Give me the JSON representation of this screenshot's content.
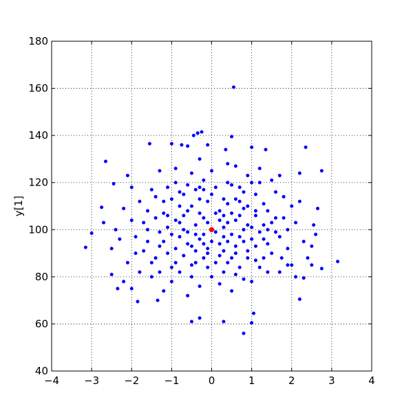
{
  "chart_data": {
    "type": "scatter",
    "ylabel": "y[1]",
    "xlim": [
      -4,
      4
    ],
    "ylim": [
      40,
      180
    ],
    "xticks": [
      {
        "value": -4,
        "label": "−4"
      },
      {
        "value": -3,
        "label": "−3"
      },
      {
        "value": -2,
        "label": "−2"
      },
      {
        "value": -1,
        "label": "−1"
      },
      0,
      1,
      2,
      3,
      4
    ],
    "yticks": [
      40,
      60,
      80,
      100,
      120,
      140,
      160,
      180
    ],
    "grid": true,
    "series": [
      {
        "color": "#0000ff",
        "x": [
          0.55,
          -0.25,
          -0.35,
          -0.45,
          0.5,
          -1.55,
          -1.0,
          -0.75,
          -0.6,
          -2.65,
          2.35,
          2.75,
          -3.15,
          -3.0,
          -2.75,
          -2.7,
          -2.45,
          -2.5,
          -2.35,
          -2.0,
          -1.85,
          -1.35,
          -0.5,
          -0.3,
          0.3,
          0.8,
          1.0,
          1.05,
          3.15,
          2.75,
          2.2,
          2.3,
          2.5,
          2.65,
          2.55,
          2.2,
          1.35,
          1.0,
          0.35,
          -0.1,
          1.75,
          1.9,
          -0.2,
          0.4,
          -0.8,
          0.9,
          1.3,
          -1.2,
          0.1,
          -0.5,
          0.7,
          -1.6,
          1.7,
          0.3,
          -0.9,
          1.1,
          -0.1,
          0.6,
          -1.4,
          1.5,
          -0.6,
          0.2,
          -2.0,
          2.0,
          -1.0,
          0.8,
          0.0,
          -0.3,
          1.2,
          -1.8,
          1.9,
          -0.7,
          0.5,
          -1.1,
          1.0,
          -0.4,
          0.3,
          -1.3,
          1.4,
          -2.3,
          2.3,
          -0.2,
          0.9,
          -0.9,
          0.6,
          -1.5,
          1.6,
          -0.1,
          0.4,
          -0.8,
          1.2,
          -1.7,
          1.8,
          0.0,
          -0.5,
          0.7,
          -1.2,
          1.3,
          -0.3,
          0.2,
          -2.1,
          2.1,
          -0.6,
          0.5,
          -1.0,
          1.1,
          -0.4,
          0.8,
          -1.9,
          1.5,
          0.1,
          -0.7,
          0.9,
          -1.4,
          1.4,
          -0.2,
          0.3,
          -2.5,
          2.6,
          -1.1,
          1.0,
          -0.8,
          0.6,
          -0.1,
          0.4,
          -1.6,
          1.7,
          -0.3,
          0.2,
          -1.3,
          1.3,
          -0.5,
          0.7,
          -2.2,
          2.2,
          -0.9,
          1.1,
          -0.6,
          0.5,
          -1.5,
          1.6,
          0.0,
          -0.4,
          0.8,
          -1.2,
          1.2,
          -0.2,
          0.3,
          -1.8,
          1.9,
          -0.7,
          0.6,
          -1.0,
          1.0,
          -0.3,
          0.4,
          -2.0,
          2.4,
          -1.3,
          1.4,
          -0.1,
          0.9,
          -0.8,
          0.5,
          -1.7,
          1.8,
          -0.5,
          0.2,
          -1.1,
          1.3,
          -0.4,
          0.7,
          -2.4,
          2.5,
          -0.9,
          0.8,
          -0.2,
          0.1,
          -1.4,
          1.5,
          -0.6,
          0.6,
          -1.9,
          2.0,
          0.0,
          -0.3,
          0.3,
          -1.2,
          1.1,
          -0.7,
          0.9,
          -1.6,
          1.6,
          -0.5,
          0.4,
          -2.1,
          1.7,
          -1.0,
          1.0,
          -0.1,
          0.2,
          -0.8,
          0.6,
          -1.3,
          1.2,
          -0.4,
          0.5,
          -2.2,
          2.1,
          -0.9,
          0.8,
          -0.2,
          0.3,
          -1.5,
          1.4,
          -0.6,
          0.7,
          0.1,
          -0.3,
          0.4,
          -1.1,
          1.1
        ],
        "values": [
          160.5,
          141.5,
          141,
          140,
          139.5,
          136.5,
          136.5,
          136,
          135.5,
          129,
          135,
          125,
          92.5,
          98.5,
          109.5,
          103,
          119.5,
          81,
          75,
          75,
          69.5,
          70,
          61,
          62.5,
          61,
          56,
          60.5,
          64.5,
          86.5,
          83.5,
          70.5,
          79.5,
          85,
          109,
          102,
          124,
          134,
          135,
          134,
          136,
          88,
          85,
          105,
          95,
          110,
          88,
          102,
          95,
          118,
          85,
          112,
          100,
          97,
          82,
          120,
          115,
          92,
          104,
          88,
          90,
          99,
          108,
          104,
          110,
          78,
          79,
          125,
          76,
          84,
          112,
          100,
          115,
          119,
          106,
          96,
          98,
          101,
          82,
          108,
          96,
          95,
          88,
          123,
          92,
          90,
          117,
          116,
          112,
          86,
          103,
          99,
          91,
          105,
          80,
          124,
          97,
          112,
          88,
          107,
          94,
          86,
          103,
          72,
          74,
          98,
          106,
          117,
          109,
          97,
          121,
          99,
          89,
          102,
          105,
          94,
          121,
          113,
          92,
          98,
          118,
          78,
          82,
          127,
          84,
          103,
          108,
          82,
          96,
          89,
          99,
          111,
          110,
          84,
          109,
          112,
          126,
          93,
          94,
          98,
          86,
          105,
          115,
          102,
          116,
          74,
          120,
          98,
          91,
          82,
          92,
          106,
          81,
          113,
          101,
          130,
          128,
          118,
          88,
          93,
          100,
          103,
          91,
          97,
          107,
          103,
          114,
          80,
          77,
          101,
          96,
          91,
          118,
          100,
          93,
          86,
          95,
          117,
          107,
          114,
          103,
          119,
          113,
          90,
          85,
          95,
          113,
          97,
          107,
          87,
          100,
          110,
          95,
          99,
          93,
          120,
          123,
          123,
          84,
          120,
          90,
          104,
          116,
          93,
          125,
          126,
          86,
          88,
          78,
          80,
          104,
          100,
          94,
          106,
          80,
          82,
          108,
          106,
          86,
          118,
          111,
          90,
          108
        ]
      },
      {
        "color": "#ff0000",
        "x": [
          0
        ],
        "values": [
          100
        ]
      }
    ]
  }
}
